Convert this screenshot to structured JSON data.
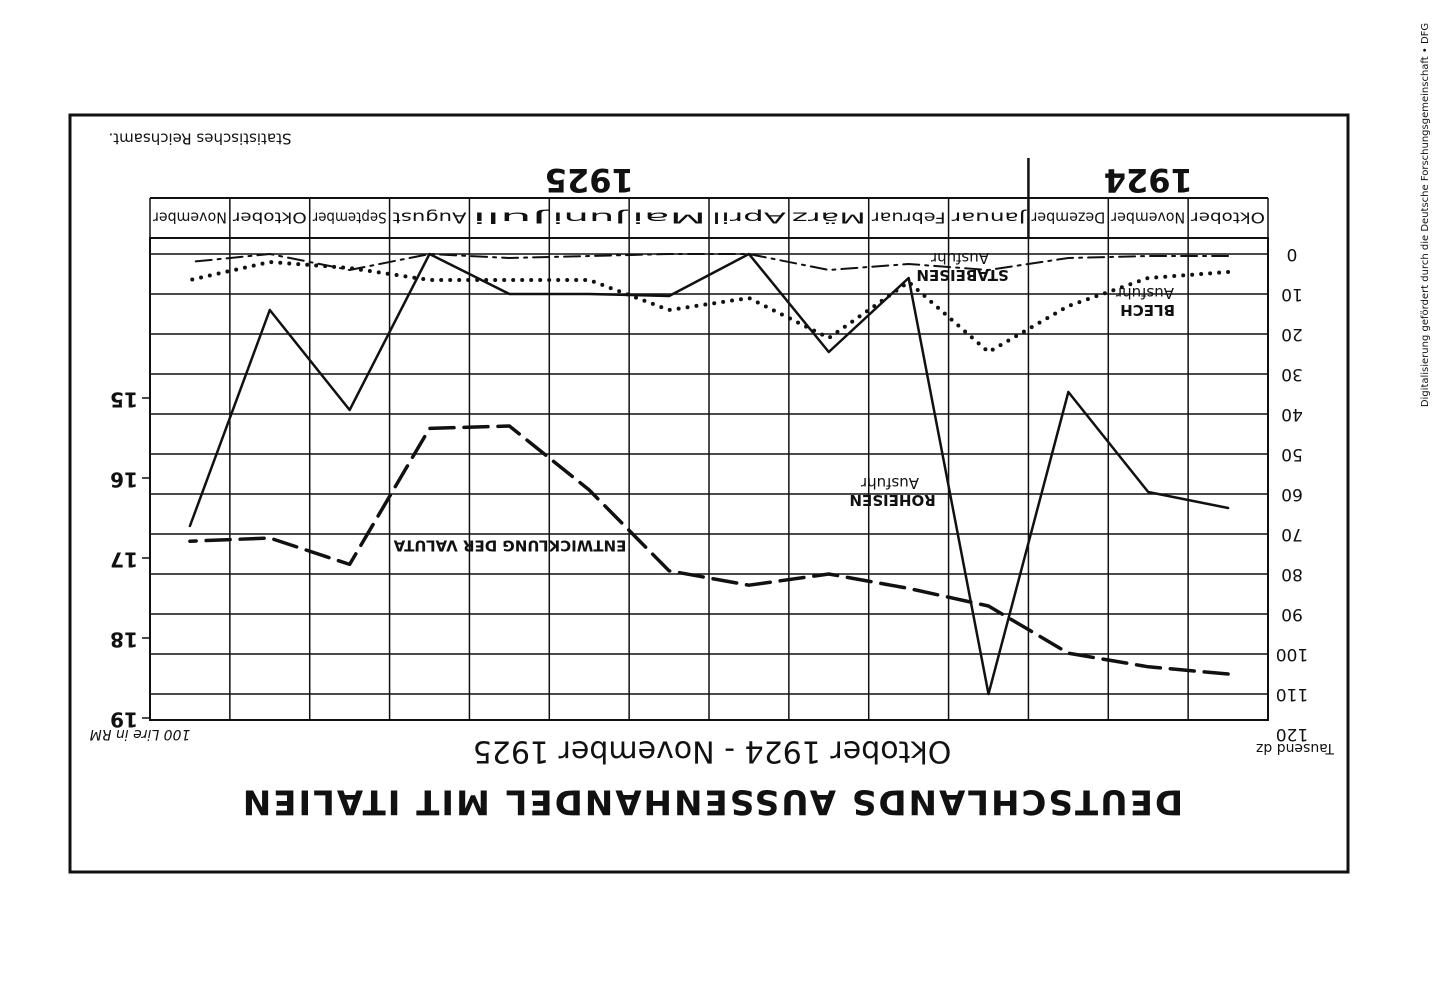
{
  "chart_data": {
    "type": "line",
    "title": "DEUTSCHLANDS AUSSENHANDEL MIT ITALIEN",
    "subtitle": "Oktober 1924 - November 1925",
    "source": "Statistisches Reichsamt.",
    "year_labels": [
      "1924",
      "1925"
    ],
    "y_label": "Tausend dz",
    "y2_label": "100 Lire in RM",
    "categories": [
      "Oktober",
      "November",
      "Dezember",
      "Januar",
      "Februar",
      "März",
      "April",
      "Mai",
      "Juni",
      "Juli",
      "August",
      "September",
      "Oktober",
      "November"
    ],
    "series": [
      {
        "name": "ROHEISEN Ausfuhr",
        "color": "#111111",
        "line_style": "solid",
        "values": [
          63.5,
          59.5,
          34.5,
          110,
          6,
          24.5,
          0,
          10.5,
          10,
          10,
          0,
          39,
          14,
          68
        ]
      },
      {
        "name": "BLECH Ausfuhr",
        "color": "#111111",
        "line_style": "dotted",
        "values": [
          4.5,
          6,
          13,
          24.5,
          7,
          21,
          11,
          14,
          6.5,
          6.5,
          6.5,
          3.5,
          2,
          6.5
        ]
      },
      {
        "name": "STABEISEN Ausfuhr",
        "color": "#111111",
        "line_style": "dashdot",
        "values": [
          0.5,
          0.5,
          1,
          4,
          2.5,
          4,
          0,
          0,
          0.5,
          1,
          0,
          4,
          0,
          2
        ]
      },
      {
        "name": "ENTWICKLUNG DER VALUTA",
        "color": "#111111",
        "line_style": "dashed",
        "axis": "y2",
        "values": [
          18.45,
          18.36,
          18.19,
          17.6,
          17.38,
          17.2,
          17.34,
          17.16,
          16.15,
          15.35,
          15.38,
          17.08,
          16.75,
          16.79
        ]
      }
    ],
    "ylim": [
      -4,
      120
    ],
    "yticks": [
      0,
      10,
      20,
      30,
      40,
      50,
      60,
      70,
      80,
      90,
      100,
      110,
      120
    ],
    "y2lim": [
      13,
      19.2
    ],
    "y2ticks": [
      15,
      16,
      17,
      18,
      19
    ],
    "grid": true
  },
  "watermark": "Digitalisierung gefördert durch die Deutsche Forschungsgemeinschaft • DFG"
}
